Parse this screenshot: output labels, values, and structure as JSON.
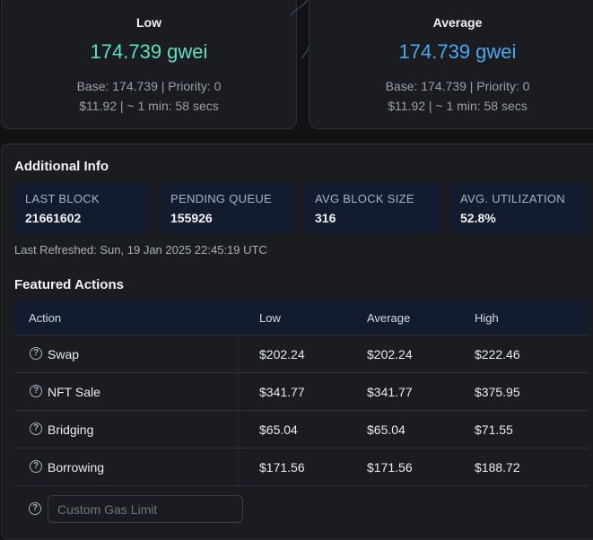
{
  "cards": [
    {
      "label": "Low",
      "gwei": "174.739 gwei",
      "base_priority": "Base: 174.739 | Priority: 0",
      "cost_time": "$11.92 | ~ 1 min: 58 secs"
    },
    {
      "label": "Average",
      "gwei": "174.739 gwei",
      "base_priority": "Base: 174.739 | Priority: 0",
      "cost_time": "$11.92 | ~ 1 min: 58 secs"
    }
  ],
  "additional_info": {
    "title": "Additional Info",
    "stats": [
      {
        "label": "LAST BLOCK",
        "value": "21661602"
      },
      {
        "label": "PENDING QUEUE",
        "value": "155926"
      },
      {
        "label": "AVG BLOCK SIZE",
        "value": "316"
      },
      {
        "label": "AVG. UTILIZATION",
        "value": "52.8%"
      }
    ],
    "last_refreshed": "Last Refreshed: Sun, 19 Jan 2025 22:45:19 UTC"
  },
  "featured": {
    "title": "Featured Actions",
    "headers": {
      "action": "Action",
      "low": "Low",
      "average": "Average",
      "high": "High"
    },
    "rows": [
      {
        "action": "Swap",
        "low": "$202.24",
        "average": "$202.24",
        "high": "$222.46"
      },
      {
        "action": "NFT Sale",
        "low": "$341.77",
        "average": "$341.77",
        "high": "$375.95"
      },
      {
        "action": "Bridging",
        "low": "$65.04",
        "average": "$65.04",
        "high": "$71.55"
      },
      {
        "action": "Borrowing",
        "low": "$171.56",
        "average": "$171.56",
        "high": "$188.72"
      }
    ],
    "custom_gas_placeholder": "Custom Gas Limit",
    "help_glyph": "?"
  },
  "colors": {
    "low_accent": "#5ee0c2",
    "average_accent": "#4aa8f0",
    "stat_bg": "#121c2e"
  }
}
